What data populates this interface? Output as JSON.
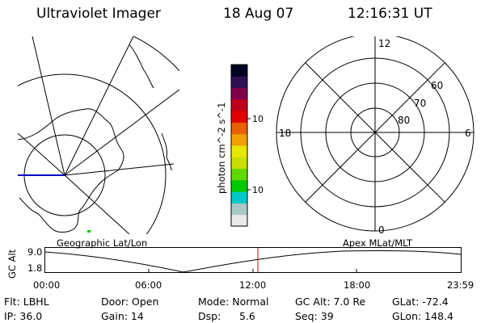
{
  "header": {
    "title": "Ultraviolet Imager",
    "date": "18 Aug 07",
    "time": "12:16:31 UT"
  },
  "colorbar": {
    "label": "photon cm^-2 s^-1",
    "tick_100": "100",
    "tick_10": "10",
    "colors": [
      "#e8e8ea",
      "#a8c8c8",
      "#00c8c8",
      "#00c800",
      "#60d800",
      "#c8e000",
      "#e8e800",
      "#f0a000",
      "#e86000",
      "#e00000",
      "#c00018",
      "#800048",
      "#301050",
      "#000020"
    ]
  },
  "polar_plot": {
    "hours": {
      "top": "12",
      "left": "18",
      "right": "6",
      "bottom": "0"
    },
    "lat_labels": [
      "60",
      "70",
      "80"
    ]
  },
  "timeline": {
    "left_title": "Geographic Lat/Lon",
    "right_title": "Apex MLat/MLT",
    "y_axis_label": "GC Alt",
    "y_ticks": [
      "9.0",
      "1.8"
    ],
    "x_ticks": [
      "00:00",
      "06:00",
      "12:00",
      "18:00",
      "23:59"
    ]
  },
  "status": {
    "flt": "Flt: LBHL",
    "ip": "IP: 36.0",
    "door": "Door: Open",
    "gain": "Gain: 14",
    "mode": "Mode: Normal",
    "dsp": "Dsp:",
    "dsp_value": "5.6",
    "gc_alt": "GC Alt: 7.0 Re",
    "seq": "Seq: 39",
    "glat": "GLat: -72.4",
    "glon": "GLon: 148.4"
  }
}
